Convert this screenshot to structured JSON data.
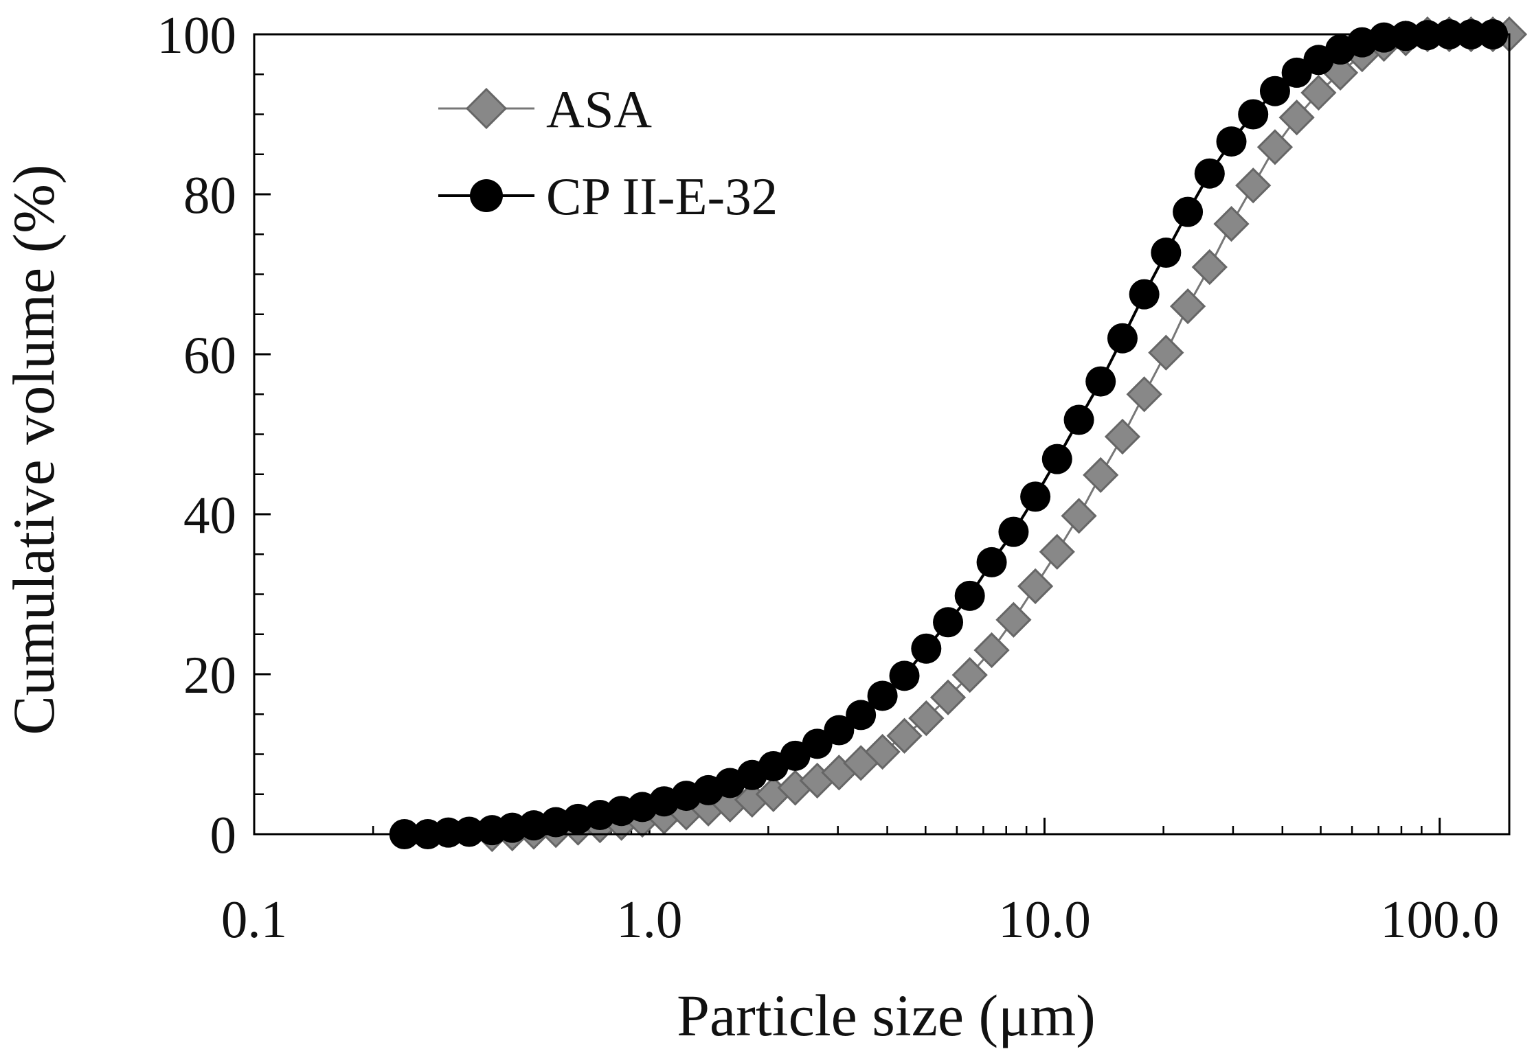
{
  "chart_data": {
    "type": "scatter",
    "title": "",
    "xlabel": "Particle size (μm)",
    "ylabel": "Cumulative volume (%)",
    "xscale": "log",
    "xlim": [
      0.1,
      150
    ],
    "ylim": [
      0,
      100
    ],
    "x_ticks": [
      {
        "value": 0.1,
        "label": "0.1"
      },
      {
        "value": 1,
        "label": "1.0"
      },
      {
        "value": 10,
        "label": "10.0"
      },
      {
        "value": 100,
        "label": "100.0"
      }
    ],
    "y_ticks": [
      {
        "value": 0,
        "label": "0"
      },
      {
        "value": 20,
        "label": "20"
      },
      {
        "value": 40,
        "label": "40"
      },
      {
        "value": 60,
        "label": "60"
      },
      {
        "value": 80,
        "label": "80"
      },
      {
        "value": 100,
        "label": "100"
      }
    ],
    "y_minor_step": 5,
    "grid": false,
    "legend_position": "top-left",
    "series": [
      {
        "name": "ASA",
        "marker": "diamond",
        "color": "#888888",
        "line_color": "#777777",
        "x": [
          0.4,
          0.45,
          0.51,
          0.58,
          0.66,
          0.75,
          0.85,
          0.96,
          1.09,
          1.24,
          1.41,
          1.6,
          1.82,
          2.06,
          2.34,
          2.66,
          3.02,
          3.43,
          3.89,
          4.42,
          5.02,
          5.7,
          6.47,
          7.35,
          8.35,
          9.48,
          10.76,
          12.22,
          13.87,
          15.75,
          17.88,
          20.3,
          23.05,
          26.17,
          29.71,
          33.73,
          38.3,
          43.48,
          49.37,
          56.05,
          63.64,
          72.26,
          82.04,
          93.14,
          105.75,
          120.07,
          136.33,
          150.0
        ],
        "values": [
          0,
          0.1,
          0.3,
          0.5,
          0.8,
          1.1,
          1.4,
          1.8,
          2.2,
          2.7,
          3.2,
          3.7,
          4.3,
          5.0,
          5.8,
          6.7,
          7.7,
          8.9,
          10.3,
          12.3,
          14.5,
          17.1,
          19.9,
          23.0,
          26.8,
          31.0,
          35.3,
          39.8,
          44.9,
          49.7,
          55.0,
          60.2,
          66.0,
          70.9,
          76.3,
          81.1,
          85.9,
          89.6,
          92.7,
          95.2,
          97.5,
          98.8,
          99.5,
          100,
          100,
          100,
          100,
          100
        ]
      },
      {
        "name": "CP II-E-32",
        "marker": "circle",
        "color": "#000000",
        "line_color": "#000000",
        "x": [
          0.24,
          0.275,
          0.31,
          0.35,
          0.4,
          0.45,
          0.51,
          0.58,
          0.66,
          0.75,
          0.85,
          0.96,
          1.09,
          1.24,
          1.41,
          1.6,
          1.82,
          2.06,
          2.34,
          2.66,
          3.02,
          3.43,
          3.89,
          4.42,
          5.02,
          5.7,
          6.47,
          7.35,
          8.35,
          9.48,
          10.76,
          12.22,
          13.87,
          15.75,
          17.88,
          20.3,
          23.05,
          26.17,
          29.71,
          33.73,
          38.3,
          43.48,
          49.37,
          56.05,
          63.64,
          72.26,
          82.04,
          93.14,
          105.75,
          120.07,
          136.33
        ],
        "values": [
          0,
          0,
          0.2,
          0.3,
          0.5,
          0.8,
          1.1,
          1.5,
          1.9,
          2.4,
          2.9,
          3.4,
          4.1,
          4.8,
          5.5,
          6.4,
          7.4,
          8.5,
          9.8,
          11.3,
          13.0,
          14.9,
          17.3,
          19.8,
          23.2,
          26.5,
          29.8,
          34.0,
          37.8,
          42.2,
          46.9,
          51.8,
          56.6,
          62.0,
          67.5,
          72.7,
          77.8,
          82.6,
          86.6,
          90.0,
          92.9,
          95.2,
          96.8,
          98.1,
          99.0,
          99.6,
          99.8,
          99.9,
          100,
          100,
          100
        ]
      }
    ]
  }
}
